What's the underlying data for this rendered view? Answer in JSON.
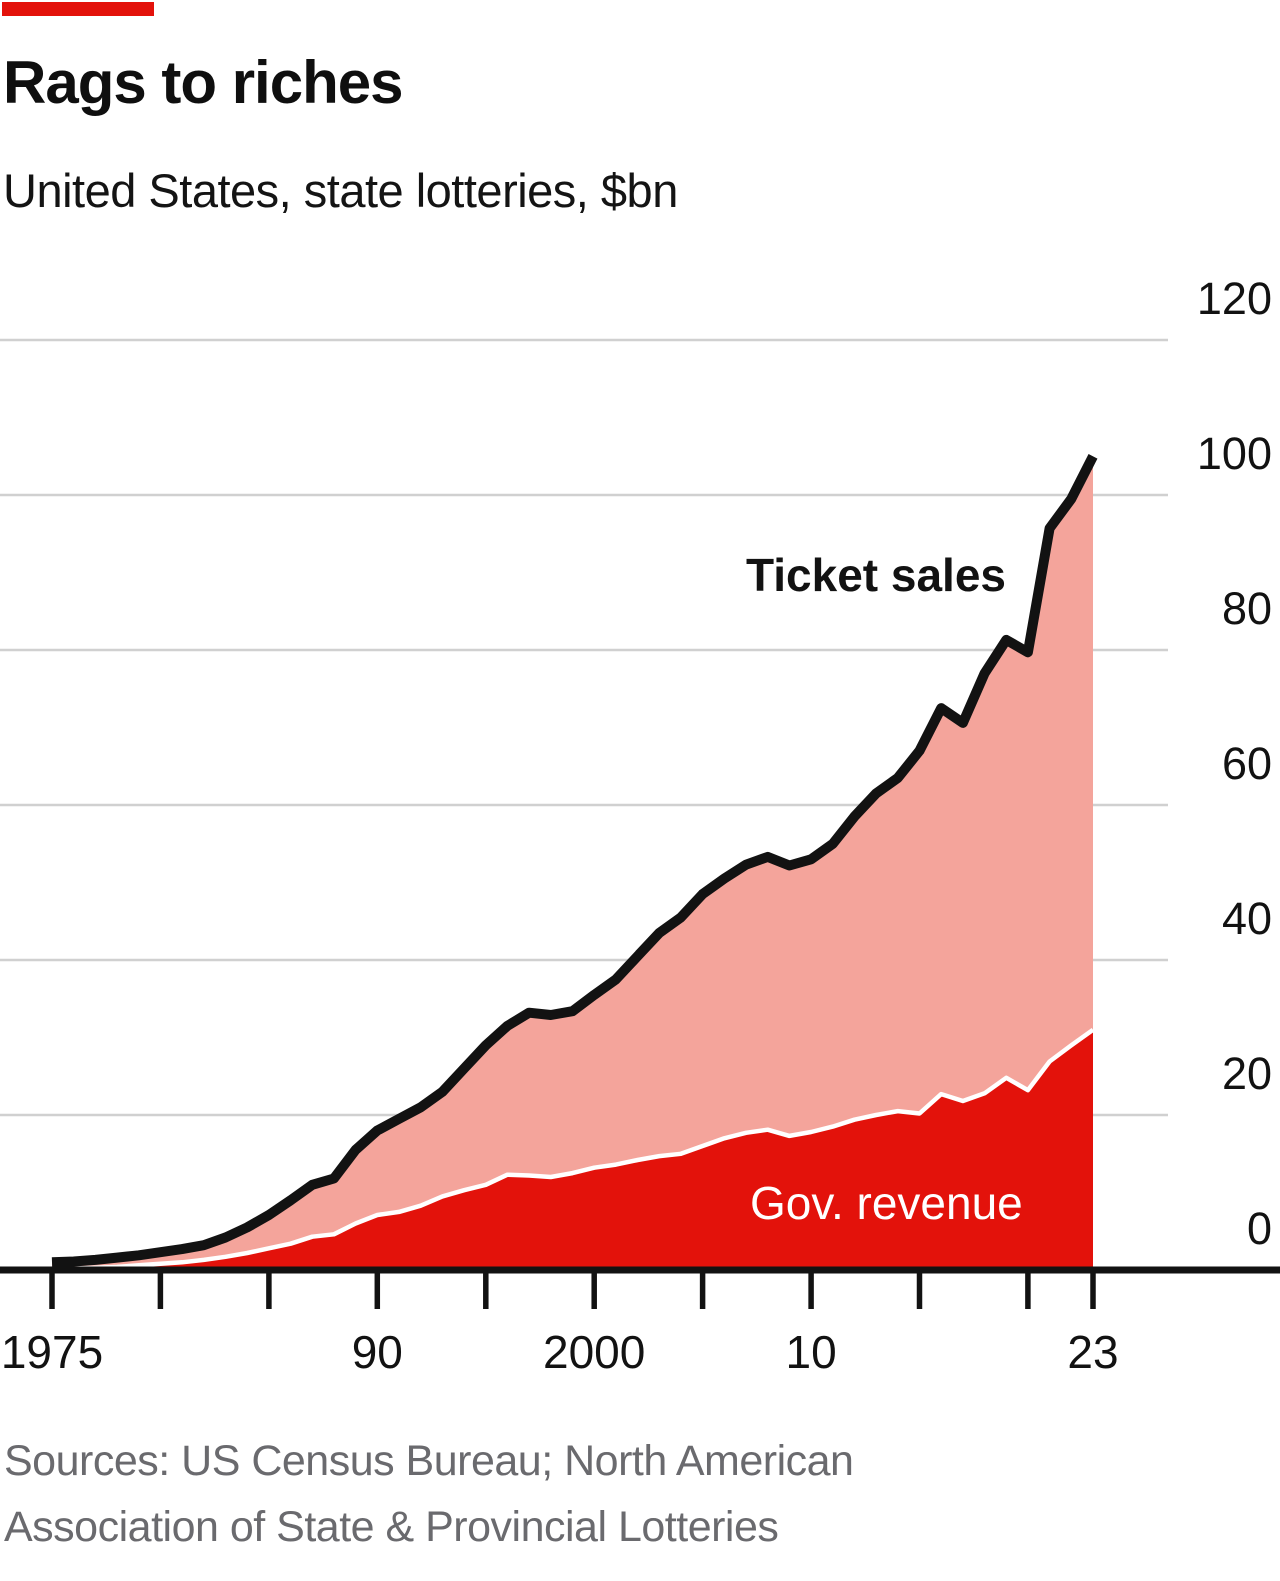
{
  "header": {
    "title": "Rags to riches",
    "subtitle": "United States, state lotteries, $bn"
  },
  "footer": {
    "sources_line1": "Sources: US Census Bureau; North American",
    "sources_line2": "Association of State & Provincial Lotteries"
  },
  "colors": {
    "brand_red": "#e3120b",
    "area_pink": "#f4a49b",
    "area_red": "#e3120b",
    "line_black": "#121212",
    "line_white": "#ffffff",
    "grid_gray": "#d0d0d0",
    "source_gray": "#6a6a6e"
  },
  "chart_data": {
    "type": "area",
    "title": "Rags to riches",
    "subtitle": "United States, state lotteries, $bn",
    "ylabel": "$bn",
    "xlabel": "",
    "grid": "horizontal",
    "legend_position": "inline-annotations",
    "ylim": [
      0,
      120
    ],
    "yticks": [
      120,
      100,
      80,
      60,
      40,
      20,
      0
    ],
    "x_start": 1975,
    "x_end": 2023,
    "x_major_tick_years": [
      1975,
      1980,
      1985,
      1990,
      1995,
      2000,
      2005,
      2010,
      2015,
      2020,
      2023
    ],
    "x_tick_labels": [
      {
        "year": 1975,
        "label": "1975"
      },
      {
        "year": 1990,
        "label": "90"
      },
      {
        "year": 2000,
        "label": "2000"
      },
      {
        "year": 2010,
        "label": "10"
      },
      {
        "year": 2023,
        "label": "23"
      }
    ],
    "years": [
      1975,
      1976,
      1977,
      1978,
      1979,
      1980,
      1981,
      1982,
      1983,
      1984,
      1985,
      1986,
      1987,
      1988,
      1989,
      1990,
      1991,
      1992,
      1993,
      1994,
      1995,
      1996,
      1997,
      1998,
      1999,
      2000,
      2001,
      2002,
      2003,
      2004,
      2005,
      2006,
      2007,
      2008,
      2009,
      2010,
      2011,
      2012,
      2013,
      2014,
      2015,
      2016,
      2017,
      2018,
      2019,
      2020,
      2021,
      2022,
      2023
    ],
    "series": [
      {
        "name": "Ticket sales",
        "line_color": "#121212",
        "fill_color": "#f4a49b",
        "values": [
          1.0,
          1.1,
          1.3,
          1.6,
          1.9,
          2.3,
          2.7,
          3.2,
          4.2,
          5.5,
          7.1,
          9.0,
          11.0,
          11.8,
          15.5,
          18.0,
          19.5,
          21.0,
          23.0,
          26.0,
          29.0,
          31.5,
          33.2,
          32.9,
          33.4,
          35.5,
          37.5,
          40.5,
          43.5,
          45.5,
          48.5,
          50.5,
          52.3,
          53.3,
          52.2,
          53.0,
          55.0,
          58.5,
          61.5,
          63.5,
          67.0,
          72.5,
          70.6,
          77.0,
          81.3,
          79.7,
          95.7,
          99.5,
          105.0
        ]
      },
      {
        "name": "Gov. revenue",
        "line_color": "#ffffff",
        "fill_color": "#e3120b",
        "values": [
          0.1,
          0.2,
          0.3,
          0.4,
          0.6,
          0.8,
          1.0,
          1.3,
          1.7,
          2.2,
          2.8,
          3.4,
          4.3,
          4.6,
          6.0,
          7.1,
          7.5,
          8.3,
          9.5,
          10.3,
          11.0,
          12.3,
          12.2,
          12.0,
          12.5,
          13.2,
          13.6,
          14.2,
          14.7,
          15.0,
          16.0,
          17.0,
          17.7,
          18.1,
          17.3,
          17.8,
          18.5,
          19.4,
          20.0,
          20.5,
          20.2,
          22.7,
          21.8,
          22.8,
          24.8,
          23.2,
          26.9,
          29.0,
          31.0
        ]
      }
    ]
  }
}
